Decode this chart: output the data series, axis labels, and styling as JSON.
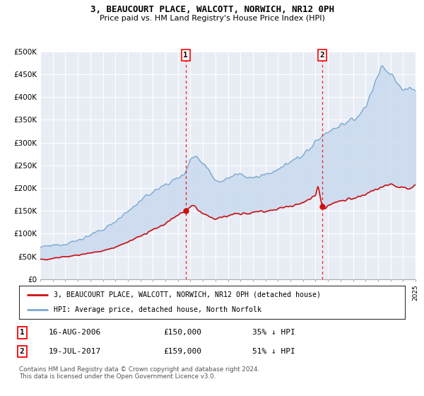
{
  "title": "3, BEAUCOURT PLACE, WALCOTT, NORWICH, NR12 0PH",
  "subtitle": "Price paid vs. HM Land Registry's House Price Index (HPI)",
  "background_color": "#ffffff",
  "plot_bg_color": "#e8edf5",
  "hpi_color": "#7aaad0",
  "hpi_fill_color": "#c8d8ee",
  "price_color": "#cc1111",
  "grid_color": "#ffffff",
  "ylim": [
    0,
    500000
  ],
  "yticks": [
    0,
    50000,
    100000,
    150000,
    200000,
    250000,
    300000,
    350000,
    400000,
    450000,
    500000
  ],
  "ytick_labels": [
    "£0",
    "£50K",
    "£100K",
    "£150K",
    "£200K",
    "£250K",
    "£300K",
    "£350K",
    "£400K",
    "£450K",
    "£500K"
  ],
  "sale1_date": 2006.625,
  "sale1_price": 150000,
  "sale2_date": 2017.542,
  "sale2_price": 159000,
  "legend_property": "3, BEAUCOURT PLACE, WALCOTT, NORWICH, NR12 0PH (detached house)",
  "legend_hpi": "HPI: Average price, detached house, North Norfolk",
  "annotation1": [
    "1",
    "16-AUG-2006",
    "£150,000",
    "35% ↓ HPI"
  ],
  "annotation2": [
    "2",
    "19-JUL-2017",
    "£159,000",
    "51% ↓ HPI"
  ],
  "footer": "Contains HM Land Registry data © Crown copyright and database right 2024.\nThis data is licensed under the Open Government Licence v3.0."
}
